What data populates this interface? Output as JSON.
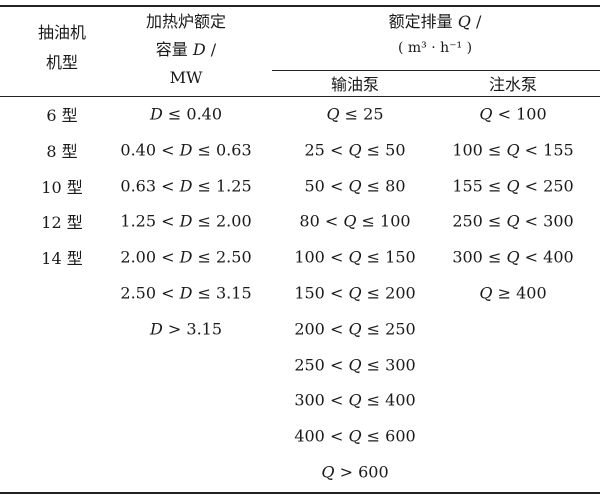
{
  "header": {
    "col1": [
      "抽油机",
      "机型"
    ],
    "col2": [
      "加热炉额定",
      "容量 D /",
      "MW"
    ],
    "col3": [
      "额定排量 Q /",
      "( m³ · h⁻¹ )"
    ],
    "sub": [
      "输油泵",
      "注水泵"
    ]
  },
  "columns": {
    "model": [
      "6 型",
      "8 型",
      "10 型",
      "12 型",
      "14 型"
    ],
    "heater": [
      "D ≤ 0.40",
      "0.40 < D ≤ 0.63",
      "0.63 < D ≤ 1.25",
      "1.25 < D ≤ 2.00",
      "2.00 < D ≤ 2.50",
      "2.50 < D ≤ 3.15",
      "D > 3.15"
    ],
    "oil_pump": [
      "Q ≤ 25",
      "25 < Q ≤ 50",
      "50 < Q ≤ 80",
      "80 < Q ≤ 100",
      "100 < Q ≤ 150",
      "150 < Q ≤ 200",
      "200 < Q ≤ 250",
      "250 < Q ≤ 300",
      "300 < Q ≤ 400",
      "400 < Q ≤ 600",
      "Q > 600"
    ],
    "water_pump": [
      "Q < 100",
      "100 ≤ Q < 155",
      "155 ≤ Q < 250",
      "250 ≤ Q < 300",
      "300 ≤ Q < 400",
      "Q ≥ 400"
    ]
  }
}
